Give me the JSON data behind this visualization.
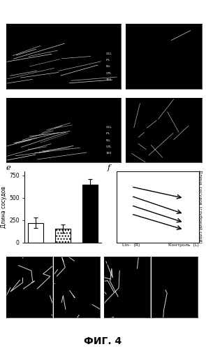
{
  "title": "ФИГ. 4",
  "title_fontsize": 10,
  "bar_values": [
    220,
    155,
    650
  ],
  "bar_errors": [
    60,
    50,
    60
  ],
  "bar_colors": [
    "white",
    "white",
    "black"
  ],
  "bar_hatches": [
    "",
    "....",
    ""
  ],
  "bar_edgecolors": [
    "black",
    "black",
    "black"
  ],
  "ylabel_e": "Длина сосудов",
  "ylabel_f": "Длина сосудов (глубокий слой)",
  "xlabel_f_left": "Lin–  (R)",
  "xlabel_f_right": "Контроль  (L)",
  "ylim_e": [
    0,
    800
  ],
  "yticks_e": [
    0,
    250,
    500,
    750
  ],
  "line_pairs_f": [
    [
      0.18,
      0.78,
      0.82,
      0.62
    ],
    [
      0.18,
      0.65,
      0.82,
      0.4
    ],
    [
      0.18,
      0.52,
      0.82,
      0.28
    ],
    [
      0.18,
      0.4,
      0.82,
      0.18
    ]
  ],
  "background_color": "white"
}
